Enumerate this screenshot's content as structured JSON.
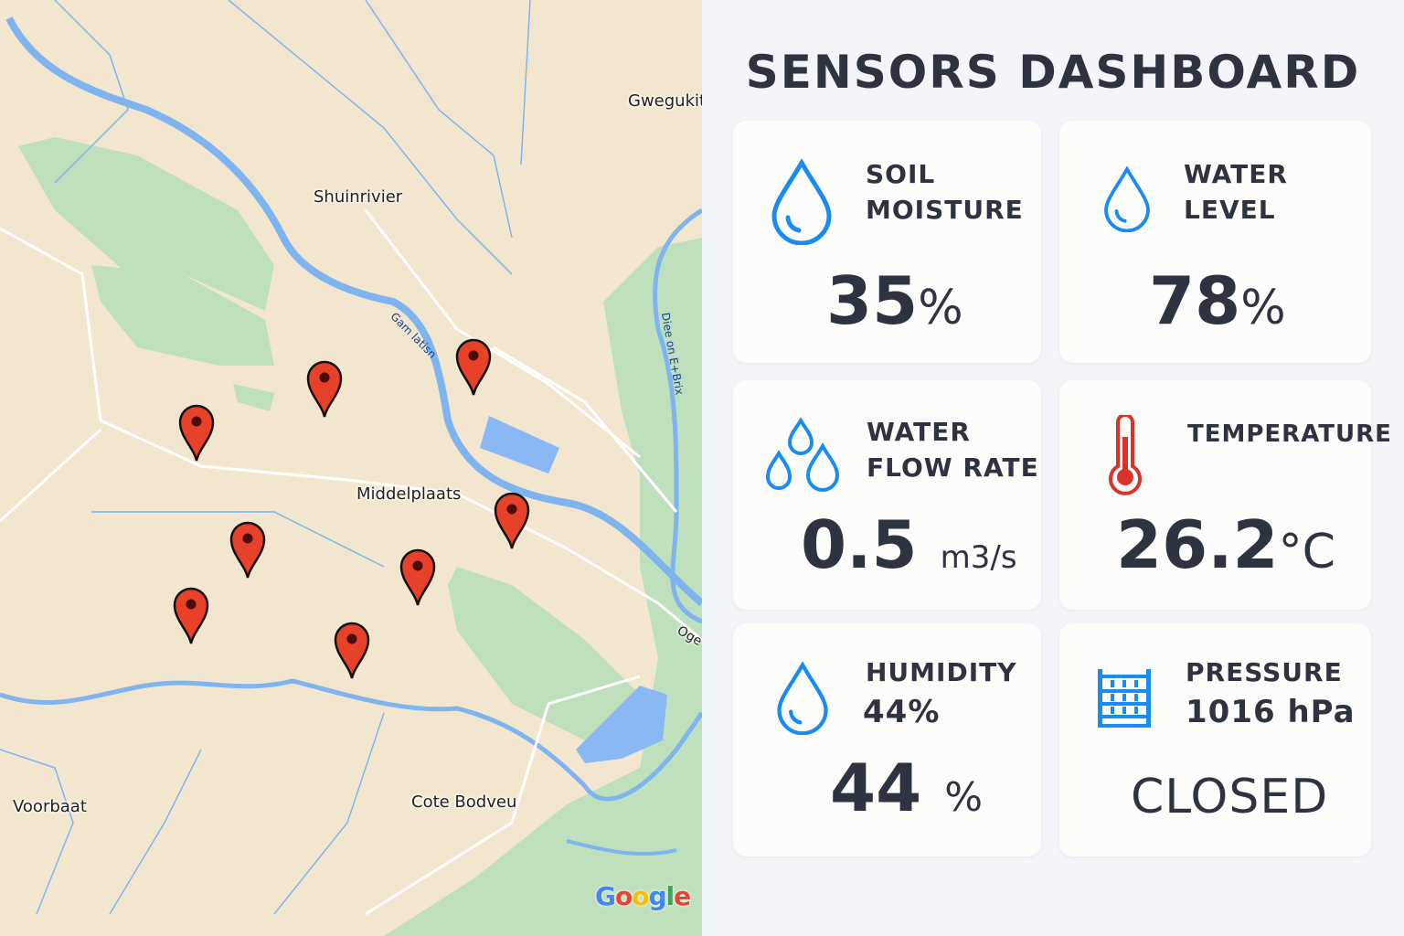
{
  "map": {
    "labels": {
      "gwegukit": "Gwegukit",
      "shuinrivier": "Shuinrivier",
      "middelplaats": "Middelplaats",
      "voorbaat": "Voorbaat",
      "cote": "Cote Bodveu",
      "edge": "Oge"
    },
    "river_labels": {
      "r1": "Gam latisn",
      "r2": "Diee on E+Brix"
    },
    "logo": "Google",
    "pin_count": 8
  },
  "dashboard": {
    "title": "SENSORS DASHBOARD",
    "cards": [
      {
        "label1": "SOIL",
        "label2": "MOISTURE",
        "value": "35",
        "unit": "%",
        "icon": "water-drop-icon"
      },
      {
        "label1": "WATER",
        "label2": "LEVEL",
        "value": "78",
        "unit": "%",
        "icon": "water-drop-icon"
      },
      {
        "label1": "WATER",
        "label2": "FLOW RATE",
        "value": "0.5",
        "unit": "m3/s",
        "icon": "water-drops-icon"
      },
      {
        "label1": "TEMPERATURE",
        "value": "26.2",
        "unit": "°C",
        "icon": "thermometer-icon"
      },
      {
        "label1": "HUMIDITY",
        "label2": "44%",
        "value": "44",
        "unit": "%",
        "icon": "water-drop-icon"
      },
      {
        "label1": "PRESSURE",
        "label2": "1016 hPa",
        "value": "CLOSED",
        "icon": "gate-icon"
      }
    ]
  },
  "colors": {
    "accent": "#1a8cf0",
    "pin": "#e8412a",
    "text": "#2d3440",
    "temp": "#d9342b"
  }
}
